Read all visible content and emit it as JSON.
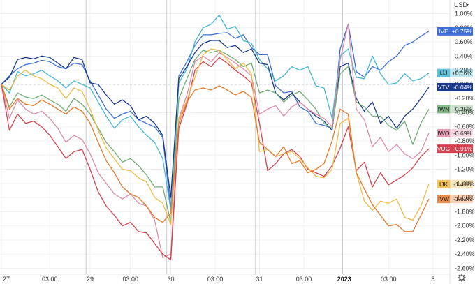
{
  "currency_label": "USD",
  "settings_icon": "gear-icon",
  "chart_data": {
    "type": "line",
    "y_axis": {
      "unit": "%",
      "ylim": [
        -2.7,
        1.07
      ],
      "ticks": [
        1.0,
        0.8,
        0.6,
        0.4,
        0.2,
        0.0,
        -0.2,
        -0.4,
        -0.6,
        -0.8,
        -1.0,
        -1.2,
        -1.4,
        -1.6,
        -1.8,
        -2.0,
        -2.2,
        -2.4,
        -2.6
      ],
      "tick_labels": [
        "1.00%",
        "0.80%",
        "0.60%",
        "0.40%",
        "0.20%",
        "0.00%",
        "-0.20%",
        "-0.40%",
        "-0.60%",
        "-0.80%",
        "-1.00%",
        "-1.20%",
        "-1.40%",
        "-1.60%",
        "-1.80%",
        "-2.00%",
        "-2.20%",
        "-2.40%",
        "-2.60%"
      ]
    },
    "x_axis": {
      "labels": [
        {
          "text": "27",
          "t": 0,
          "bold": false
        },
        {
          "text": "03:00",
          "t": 6,
          "bold": false
        },
        {
          "text": "29",
          "t": 11,
          "bold": false
        },
        {
          "text": "03:00",
          "t": 16,
          "bold": false
        },
        {
          "text": "30",
          "t": 21,
          "bold": false
        },
        {
          "text": "03:00",
          "t": 26.5,
          "bold": false
        },
        {
          "text": "31",
          "t": 32,
          "bold": false
        },
        {
          "text": "03:00",
          "t": 37.5,
          "bold": false
        },
        {
          "text": "2023",
          "t": 42.5,
          "bold": true
        },
        {
          "text": "03:00",
          "t": 48,
          "bold": false
        },
        {
          "text": "5",
          "t": 53.5,
          "bold": false
        }
      ],
      "session_breaks": [
        10.5,
        20.5,
        31.5,
        42.3
      ]
    },
    "grid": true,
    "series": [
      {
        "name": "IVE",
        "color": "#3f6fd6",
        "last": "+0.75%",
        "values": [
          0.0,
          0.12,
          0.22,
          0.28,
          0.3,
          0.34,
          0.32,
          0.25,
          0.22,
          0.3,
          0.28,
          0.05,
          -0.15,
          -0.35,
          -0.48,
          -0.42,
          -0.38,
          -0.5,
          -0.55,
          -0.6,
          -0.75,
          -1.75,
          0.12,
          0.32,
          0.55,
          0.7,
          0.7,
          0.72,
          0.73,
          0.65,
          0.7,
          0.52,
          0.42,
          0.42,
          -0.02,
          -0.12,
          -0.1,
          -0.32,
          -0.38,
          -0.55,
          -0.58,
          -0.62,
          0.5,
          0.85,
          0.18,
          0.1,
          0.25,
          0.2,
          0.32,
          0.4,
          0.55,
          0.6,
          0.68,
          0.75
        ]
      },
      {
        "name": "IJJ",
        "color": "#45b8d4",
        "last": "+0.16%",
        "values": [
          0.0,
          -0.12,
          0.18,
          0.12,
          0.15,
          0.2,
          0.12,
          0.05,
          -0.05,
          0.05,
          0.0,
          -0.05,
          -0.25,
          -0.45,
          -0.62,
          -0.5,
          -0.45,
          -0.6,
          -0.72,
          -0.82,
          -1.05,
          -1.78,
          0.02,
          0.22,
          0.6,
          0.8,
          0.85,
          0.98,
          0.78,
          0.82,
          0.62,
          0.58,
          0.35,
          0.22,
          0.05,
          0.12,
          0.25,
          0.2,
          0.25,
          -0.02,
          -0.05,
          -0.48,
          0.4,
          0.5,
          0.1,
          0.08,
          0.4,
          0.15,
          0.0,
          0.02,
          0.15,
          0.05,
          0.08,
          0.16
        ]
      },
      {
        "name": "VTV",
        "color": "#1b3a8c",
        "last": "-0.04%",
        "values": [
          0.0,
          0.1,
          0.35,
          0.38,
          0.36,
          0.4,
          0.38,
          0.3,
          0.22,
          0.38,
          0.35,
          0.02,
          0.0,
          -0.15,
          -0.28,
          -0.22,
          -0.3,
          -0.5,
          -0.45,
          -0.55,
          -0.72,
          -1.6,
          0.08,
          0.25,
          0.45,
          0.58,
          0.62,
          0.62,
          0.52,
          0.55,
          0.45,
          0.5,
          0.3,
          0.28,
          -0.12,
          -0.22,
          -0.12,
          -0.25,
          -0.35,
          -0.45,
          -0.52,
          -0.65,
          0.25,
          0.3,
          -0.2,
          -0.38,
          -0.25,
          -0.55,
          -0.45,
          -0.62,
          -0.45,
          -0.35,
          -0.2,
          -0.04
        ]
      },
      {
        "name": "IWN",
        "color": "#6fae72",
        "last": "-0.35%",
        "values": [
          0.0,
          -0.32,
          -0.12,
          -0.18,
          -0.2,
          -0.15,
          -0.22,
          -0.28,
          -0.38,
          -0.2,
          -0.28,
          -0.42,
          -0.62,
          -0.82,
          -0.95,
          -1.1,
          -1.05,
          -1.15,
          -1.28,
          -1.45,
          -1.45,
          -1.95,
          -0.2,
          0.08,
          0.35,
          0.48,
          0.45,
          0.48,
          0.42,
          0.35,
          0.25,
          0.3,
          -0.12,
          -0.08,
          -0.12,
          -0.25,
          -0.15,
          -0.1,
          -0.22,
          -0.35,
          -0.55,
          -0.62,
          0.15,
          0.25,
          -0.25,
          -0.32,
          -0.45,
          -0.45,
          -0.58,
          -0.65,
          -0.52,
          -0.85,
          -0.55,
          -0.35
        ]
      },
      {
        "name": "IWO",
        "color": "#e08aa6",
        "last": "-0.69%",
        "values": [
          0.0,
          -0.48,
          -0.22,
          -0.35,
          -0.42,
          -0.38,
          -0.48,
          -0.62,
          -0.82,
          -0.72,
          -0.78,
          -0.98,
          -1.25,
          -1.4,
          -1.55,
          -1.62,
          -1.55,
          -1.68,
          -1.72,
          -1.92,
          -2.45,
          -2.4,
          -0.48,
          -0.15,
          0.32,
          0.4,
          0.32,
          0.45,
          0.38,
          0.3,
          0.22,
          0.12,
          -0.42,
          -0.35,
          -0.3,
          -0.45,
          -0.32,
          -0.25,
          -0.35,
          -0.42,
          -0.48,
          -0.6,
          0.35,
          0.85,
          -0.35,
          -0.5,
          -0.88,
          -0.75,
          -0.95,
          -0.85,
          -0.98,
          -1.05,
          -0.95,
          -0.69
        ]
      },
      {
        "name": "VUG",
        "color": "#d6404e",
        "last": "-0.91%",
        "values": [
          0.0,
          -0.65,
          -0.42,
          -0.55,
          -0.52,
          -0.6,
          -0.72,
          -0.88,
          -1.05,
          -0.95,
          -0.92,
          -1.2,
          -1.52,
          -1.72,
          -1.85,
          -2.0,
          -1.95,
          -2.08,
          -2.1,
          -2.25,
          -2.4,
          -2.48,
          -0.62,
          -0.28,
          0.2,
          0.32,
          0.25,
          0.38,
          0.3,
          0.2,
          0.12,
          0.02,
          -0.55,
          -1.22,
          -1.12,
          -0.98,
          -0.92,
          -1.02,
          -1.2,
          -1.25,
          -1.3,
          -1.15,
          -0.9,
          -0.6,
          -1.22,
          -1.1,
          -1.45,
          -1.25,
          -1.42,
          -1.35,
          -1.28,
          -1.18,
          -1.02,
          -0.91
        ]
      },
      {
        "name": "IJK",
        "color": "#f2ba44",
        "last": "-1.41%",
        "values": [
          0.0,
          -0.08,
          0.12,
          0.2,
          0.12,
          0.08,
          0.0,
          -0.05,
          -0.2,
          -0.05,
          -0.1,
          -0.35,
          -0.65,
          -0.9,
          -1.05,
          -1.2,
          -1.22,
          -1.32,
          -1.38,
          -1.6,
          -1.68,
          -1.98,
          -0.5,
          -0.22,
          0.1,
          0.42,
          0.5,
          0.48,
          0.35,
          0.22,
          0.3,
          0.15,
          -0.95,
          -0.92,
          -1.02,
          -0.98,
          -0.95,
          -1.05,
          -1.18,
          -1.3,
          -1.32,
          -1.2,
          -0.55,
          -0.48,
          -1.25,
          -1.65,
          -1.78,
          -1.65,
          -1.68,
          -1.62,
          -1.88,
          -1.92,
          -1.72,
          -1.41
        ]
      },
      {
        "name": "IVW",
        "color": "#e8782a",
        "last": "-1.62%",
        "values": [
          0.0,
          -0.35,
          -0.2,
          -0.28,
          -0.3,
          -0.22,
          -0.28,
          -0.35,
          -0.42,
          -0.32,
          -0.38,
          -0.55,
          -0.82,
          -1.08,
          -1.25,
          -1.45,
          -1.55,
          -1.6,
          -1.72,
          -1.88,
          -1.95,
          -1.82,
          -0.55,
          -0.25,
          -0.08,
          -0.05,
          -0.08,
          -0.02,
          -0.08,
          -0.15,
          -0.1,
          -0.18,
          -0.82,
          -0.92,
          -1.02,
          -0.88,
          -1.12,
          -1.08,
          -1.25,
          -1.2,
          -1.12,
          -0.8,
          -0.35,
          -0.42,
          -1.25,
          -1.48,
          -1.7,
          -1.85,
          -2.0,
          -1.98,
          -2.08,
          -2.08,
          -1.85,
          -1.62
        ]
      }
    ]
  }
}
